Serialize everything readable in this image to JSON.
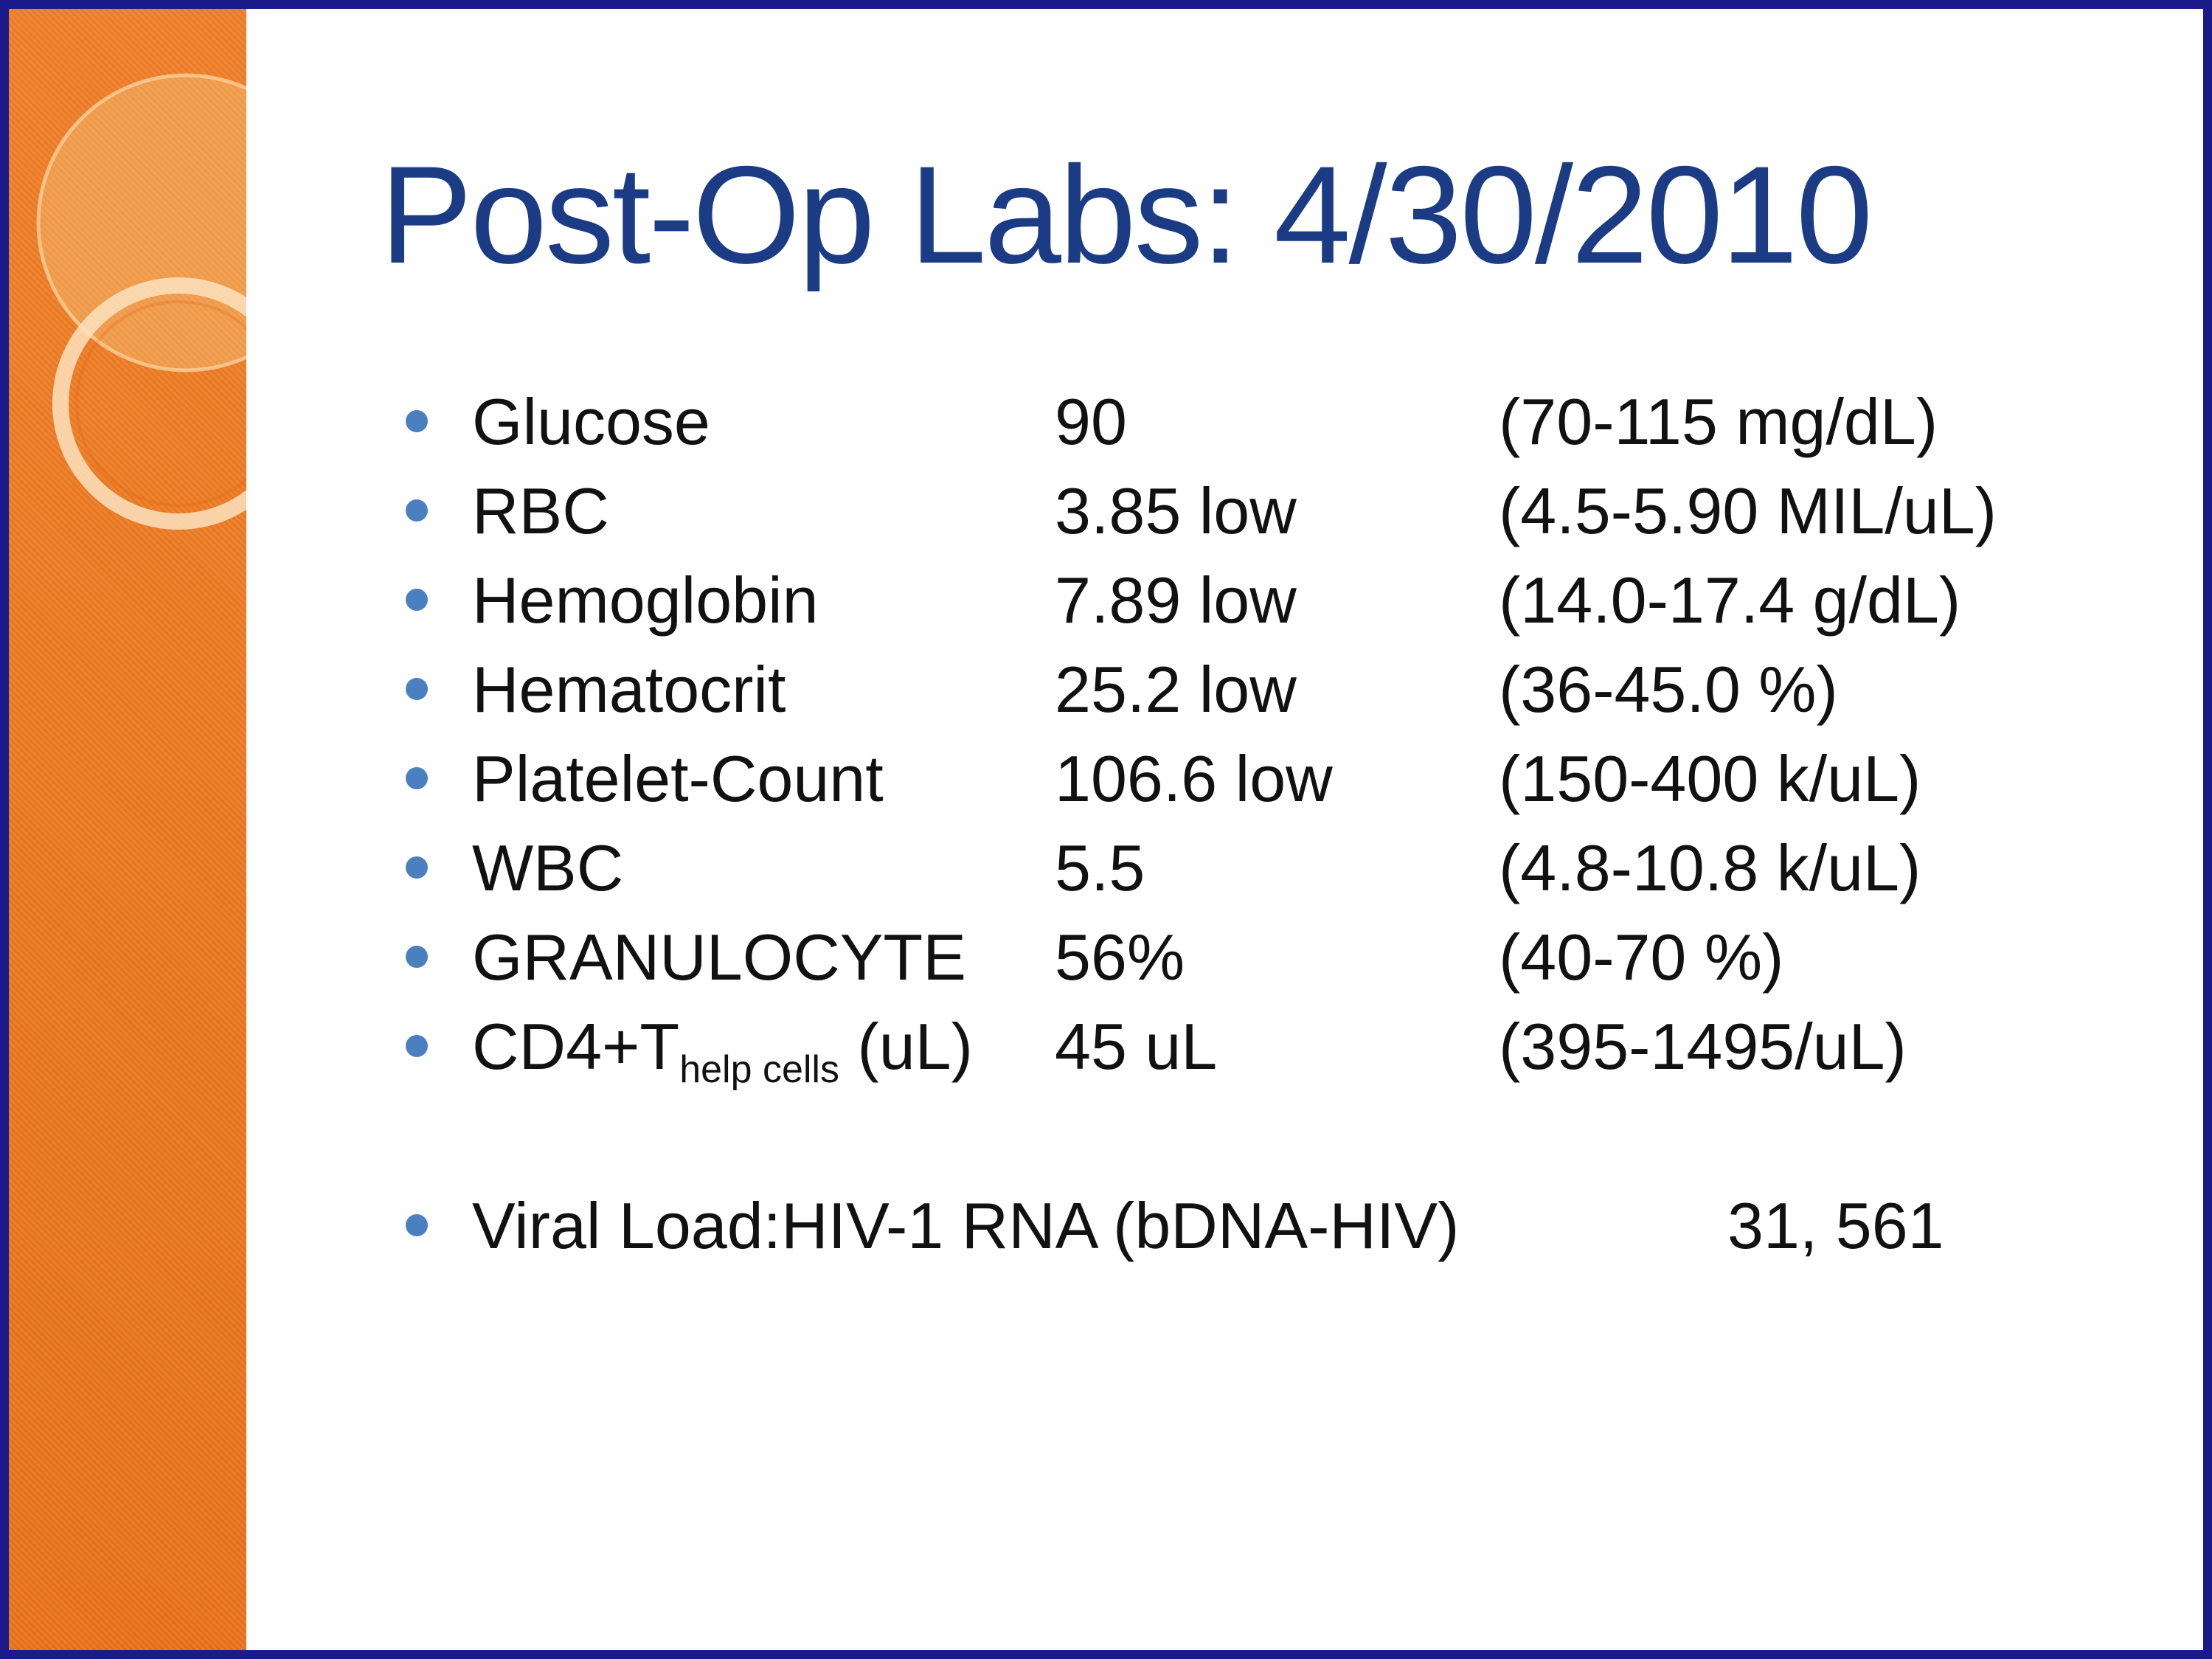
{
  "slide": {
    "title": "Post-Op Labs: 4/30/2010",
    "labs": [
      {
        "name": "Glucose",
        "value": "90",
        "range": "(70-115 mg/dL)"
      },
      {
        "name": "RBC",
        "value": "3.85 low",
        "range": "(4.5-5.90 MIL/uL)"
      },
      {
        "name": "Hemoglobin",
        "value": "7.89 low",
        "range": "(14.0-17.4 g/dL)"
      },
      {
        "name": "Hematocrit",
        "value": "25.2 low",
        "range": "(36-45.0 %)"
      },
      {
        "name": "Platelet-Count",
        "value": "106.6 low",
        "range": "(150-400 k/uL)"
      },
      {
        "name": "WBC",
        "value": "5.5",
        "range": "(4.8-10.8 k/uL)"
      },
      {
        "name": "GRANULOCYTE",
        "value": "56%",
        "range": "(40-70 %)"
      },
      {
        "name": "CD4+T",
        "name_sub": "help cells",
        "name_suffix": " (uL)",
        "value": "45 uL",
        "range": "(395-1495/uL)"
      }
    ],
    "viral_load": {
      "label": "Viral Load:HIV-1 RNA (bDNA-HIV)",
      "value": "31, 561"
    }
  },
  "colors": {
    "title": "#1b3c84",
    "bullet": "#4a80c0",
    "band": "#ec7a22",
    "border": "#1a1a8a"
  }
}
